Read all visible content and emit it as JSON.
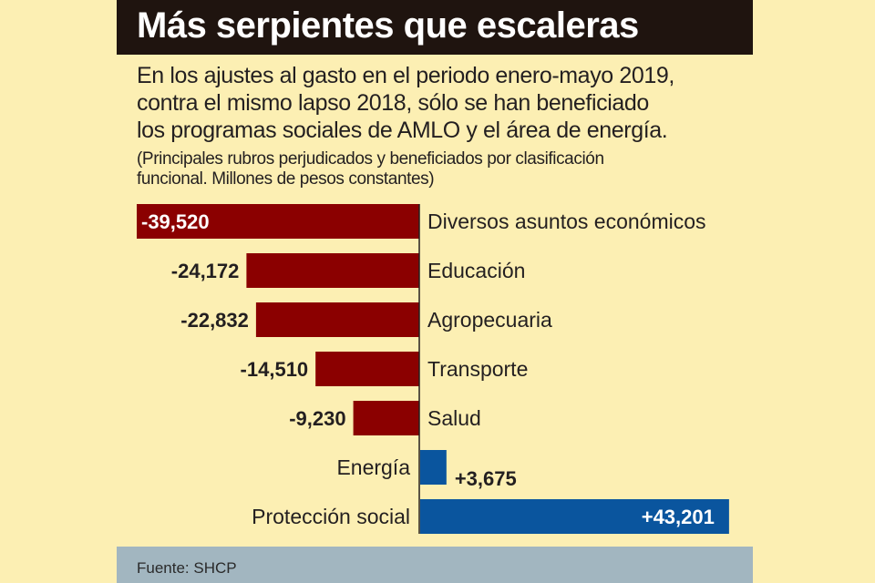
{
  "title": "Más serpientes que escaleras",
  "lead": "En los ajustes al gasto en el periodo enero-mayo 2019, contra el mismo lapso 2018, sólo se han beneficiado los programas sociales de AMLO y el área de energía.",
  "lead_lines": [
    "En los ajustes al gasto en el periodo enero-mayo 2019,",
    "contra el mismo lapso 2018, sólo se han beneficiado",
    "los programas sociales de AMLO y el área de energía."
  ],
  "note_lines": [
    "(Principales rubros perjudicados y beneficiados por clasificación",
    "funcional. Millones de pesos constantes)"
  ],
  "source": "Fuente: SHCP",
  "colors": {
    "negative": "#8b0000",
    "positive": "#0a559e",
    "background": "#fcefb3",
    "titlebar": "#1f140f",
    "footer": "#a2b6c0"
  },
  "chart_data": {
    "type": "bar",
    "orientation": "horizontal",
    "title": "Más serpientes que escaleras",
    "xlabel": "",
    "ylabel": "",
    "unit": "Millones de pesos constantes",
    "categories": [
      "Diversos asuntos económicos",
      "Educación",
      "Agropecuaria",
      "Transporte",
      "Salud",
      "Energía",
      "Protección social"
    ],
    "values": [
      -39520,
      -24172,
      -22832,
      -14510,
      -9230,
      3675,
      43201
    ],
    "labels": [
      "-39,520",
      "-24,172",
      "-22,832",
      "-14,510",
      "-9,230",
      "+3,675",
      "+43,201"
    ],
    "xlim": [
      -40000,
      44000
    ],
    "grid": false
  }
}
